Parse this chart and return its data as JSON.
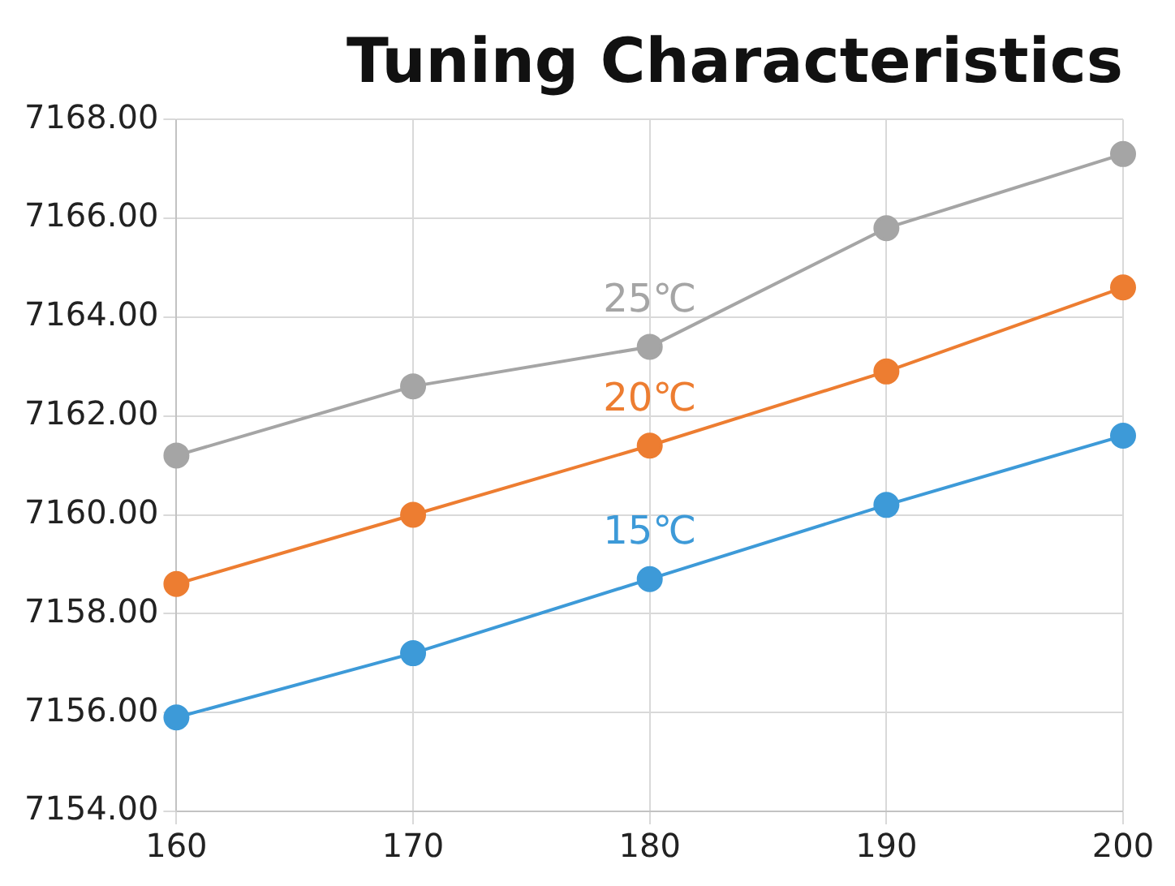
{
  "chart_data": {
    "type": "line",
    "title": "Tuning Characteristics",
    "x": [
      160,
      170,
      180,
      190,
      200
    ],
    "series": [
      {
        "name": "25℃",
        "color": "#a5a5a5",
        "values": [
          7161.2,
          7162.6,
          7163.4,
          7165.8,
          7167.3
        ]
      },
      {
        "name": "20℃",
        "color": "#ed7d31",
        "values": [
          7158.6,
          7160.0,
          7161.4,
          7162.9,
          7164.6
        ]
      },
      {
        "name": "15℃",
        "color": "#3d9ad8",
        "values": [
          7155.9,
          7157.2,
          7158.7,
          7160.2,
          7161.6
        ]
      }
    ],
    "xlim": [
      160,
      200
    ],
    "xticks": [
      160,
      170,
      180,
      190,
      200
    ],
    "ylim": [
      7154,
      7168
    ],
    "yticks": [
      {
        "value": 7154,
        "label": "7154.00"
      },
      {
        "value": 7156,
        "label": "7156.00"
      },
      {
        "value": 7158,
        "label": "7158.00"
      },
      {
        "value": 7160,
        "label": "7160.00"
      },
      {
        "value": 7162,
        "label": "7162.00"
      },
      {
        "value": 7164,
        "label": "7164.00"
      },
      {
        "value": 7166,
        "label": "7166.00"
      },
      {
        "value": 7168,
        "label": "7168.00"
      }
    ],
    "grid": true,
    "legend": false,
    "marker": "circle",
    "line_style": "solid"
  }
}
